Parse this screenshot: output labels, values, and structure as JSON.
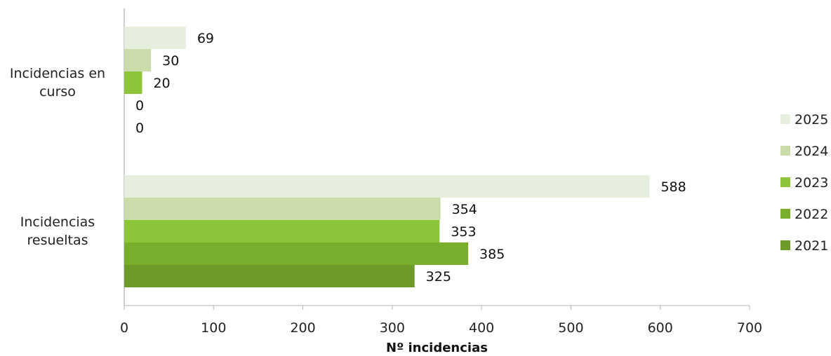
{
  "chart_data": {
    "type": "bar",
    "orientation": "horizontal",
    "categories": [
      "Incidencias en curso",
      "Incidencias resueltas"
    ],
    "category_label_lines": [
      [
        "Incidencias en",
        "curso"
      ],
      [
        "Incidencias",
        "resueltas"
      ]
    ],
    "series": [
      {
        "name": "2025",
        "values": [
          69,
          588
        ],
        "color": "#e6eedd"
      },
      {
        "name": "2024",
        "values": [
          30,
          354
        ],
        "color": "#c9dcaa"
      },
      {
        "name": "2023",
        "values": [
          20,
          353
        ],
        "color": "#8dc53a"
      },
      {
        "name": "2022",
        "values": [
          0,
          385
        ],
        "color": "#79ad2c"
      },
      {
        "name": "2021",
        "values": [
          0,
          325
        ],
        "color": "#6e9a2a"
      }
    ],
    "xlabel": "Nº incidencias",
    "ylabel": "",
    "xlim": [
      0,
      700
    ],
    "xticks": [
      0,
      100,
      200,
      300,
      400,
      500,
      600,
      700
    ],
    "grid": false,
    "legend_position": "right"
  }
}
